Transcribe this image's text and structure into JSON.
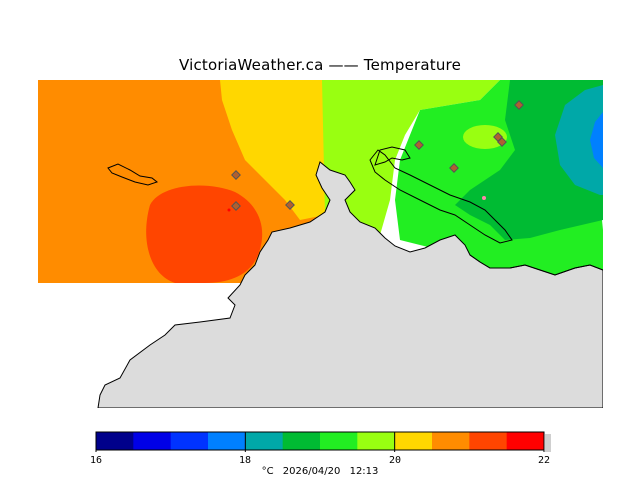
{
  "header": {
    "title": "VictoriaWeather.ca  —— Temperature"
  },
  "legend": {
    "colors": [
      "#00008b",
      "#0000e6",
      "#0033ff",
      "#0080ff",
      "#00a8a8",
      "#00bb33",
      "#22ee22",
      "#99ff11",
      "#ffd700",
      "#ff8c00",
      "#ff4500",
      "#ff0000"
    ],
    "tick_labels": [
      "16",
      "18",
      "20",
      "22"
    ],
    "unit": "°C",
    "date": "2026/04/20",
    "time": "12:13"
  },
  "map": {
    "land_color": "#dcdcdc",
    "coast_color": "#000000",
    "zones": [
      {
        "name": "orange-west",
        "temp": "20.5-21",
        "color": "#ff8c00"
      },
      {
        "name": "red-orange-core",
        "temp": "21-21.5",
        "color": "#ff4500"
      },
      {
        "name": "yellow-band",
        "temp": "20-20.5",
        "color": "#ffd700"
      },
      {
        "name": "light-green",
        "temp": "19.5-20",
        "color": "#99ff11"
      },
      {
        "name": "green",
        "temp": "19-19.5",
        "color": "#22ee22"
      },
      {
        "name": "dark-green",
        "temp": "18.5-19",
        "color": "#00bb33"
      },
      {
        "name": "teal",
        "temp": "18-18.5",
        "color": "#00a8a8"
      },
      {
        "name": "blue",
        "temp": "17.5-18",
        "color": "#0080ff"
      }
    ],
    "stations": [
      "station-1",
      "station-2",
      "station-3",
      "station-4",
      "station-5",
      "station-6",
      "station-7",
      "station-8"
    ]
  }
}
